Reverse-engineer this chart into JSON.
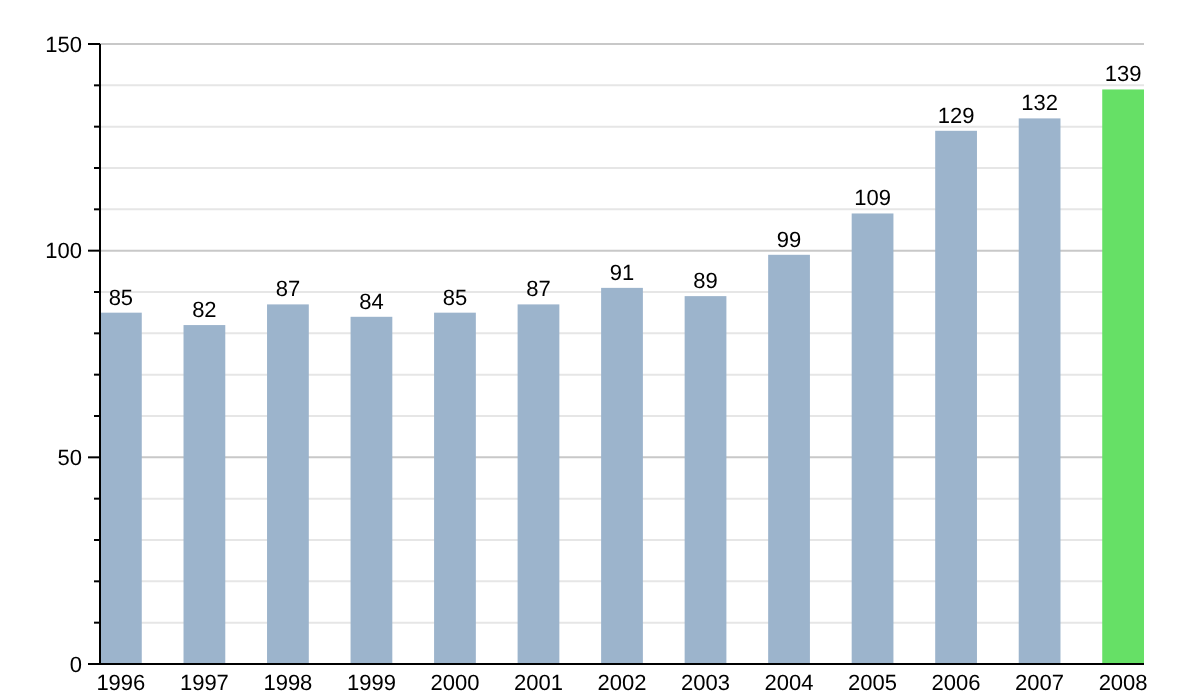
{
  "chart_data": {
    "type": "bar",
    "categories": [
      "1996",
      "1997",
      "1998",
      "1999",
      "2000",
      "2001",
      "2002",
      "2003",
      "2004",
      "2005",
      "2006",
      "2007",
      "2008"
    ],
    "values": [
      85,
      82,
      87,
      84,
      85,
      87,
      91,
      89,
      99,
      109,
      129,
      132,
      139
    ],
    "colors": [
      "#9cb4cc",
      "#9cb4cc",
      "#9cb4cc",
      "#9cb4cc",
      "#9cb4cc",
      "#9cb4cc",
      "#9cb4cc",
      "#9cb4cc",
      "#9cb4cc",
      "#9cb4cc",
      "#9cb4cc",
      "#9cb4cc",
      "#66e066"
    ],
    "ylim": [
      0,
      150
    ],
    "yticks": [
      0,
      {
        "value": 10,
        "label": null
      },
      {
        "value": 20,
        "label": null
      },
      {
        "value": 30,
        "label": null
      },
      {
        "value": 40,
        "label": null
      },
      50,
      {
        "value": 60,
        "label": null
      },
      {
        "value": 70,
        "label": null
      },
      {
        "value": 80,
        "label": null
      },
      {
        "value": 90,
        "label": null
      },
      100,
      {
        "value": 110,
        "label": null
      },
      {
        "value": 120,
        "label": null
      },
      {
        "value": 130,
        "label": null
      },
      {
        "value": 140,
        "label": null
      },
      150
    ],
    "grid": "y",
    "data_labels": true
  }
}
